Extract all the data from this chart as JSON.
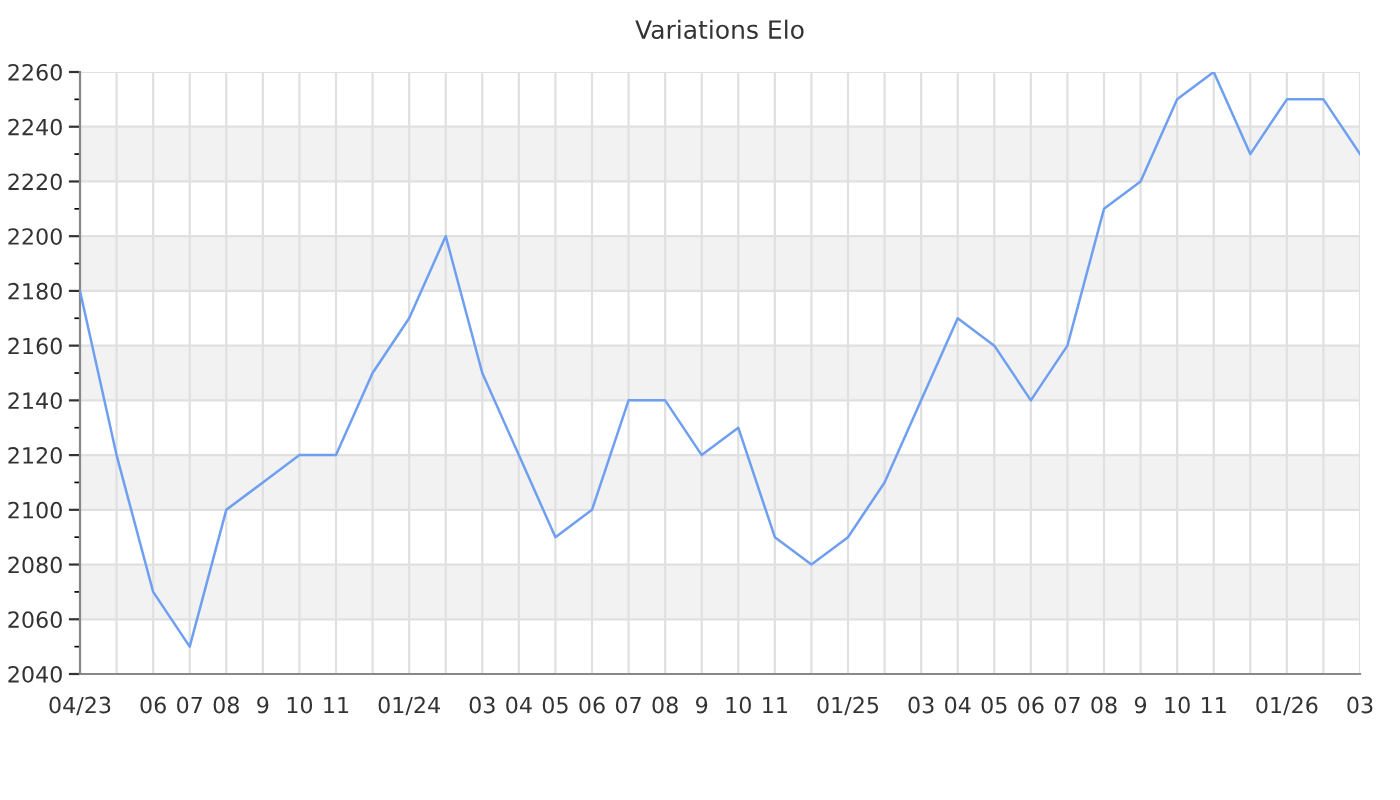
{
  "chart_data": {
    "type": "line",
    "title": "Variations Elo",
    "categories": [
      "04/23",
      null,
      "06",
      "07",
      "08",
      "9",
      "10",
      "11",
      null,
      "01/24",
      null,
      "03",
      "04",
      "05",
      "06",
      "07",
      "08",
      "9",
      "10",
      "11",
      null,
      "01/25",
      null,
      "03",
      "04",
      "05",
      "06",
      "07",
      "08",
      "9",
      "10",
      "11",
      null,
      "01/26",
      null,
      "03"
    ],
    "series": [
      {
        "color": "#6e9ff0",
        "values": [
          2180,
          2120,
          2070,
          2050,
          2100,
          2110,
          2120,
          2120,
          2150,
          2170,
          2200,
          2150,
          2120,
          2090,
          2100,
          2140,
          2140,
          2120,
          2130,
          2090,
          2080,
          2090,
          2110,
          2140,
          2170,
          2160,
          2140,
          2160,
          2210,
          2220,
          2250,
          2260,
          2230,
          2250,
          2250,
          2230
        ]
      }
    ],
    "ylim": [
      2040,
      2260
    ],
    "yticks": [
      2040,
      2060,
      2080,
      2100,
      2120,
      2140,
      2160,
      2180,
      2200,
      2220,
      2240,
      2260
    ],
    "bands": [
      {
        "axis": "y",
        "from": 2060,
        "to": 2080,
        "color": "#f2f2f2"
      },
      {
        "axis": "y",
        "from": 2100,
        "to": 2120,
        "color": "#f2f2f2"
      },
      {
        "axis": "y",
        "from": 2140,
        "to": 2160,
        "color": "#f2f2f2"
      },
      {
        "axis": "y",
        "from": 2180,
        "to": 2200,
        "color": "#f2f2f2"
      },
      {
        "axis": "y",
        "from": 2220,
        "to": 2240,
        "color": "#f2f2f2"
      }
    ],
    "grid": true,
    "marker": "none",
    "line_style": "solid"
  }
}
